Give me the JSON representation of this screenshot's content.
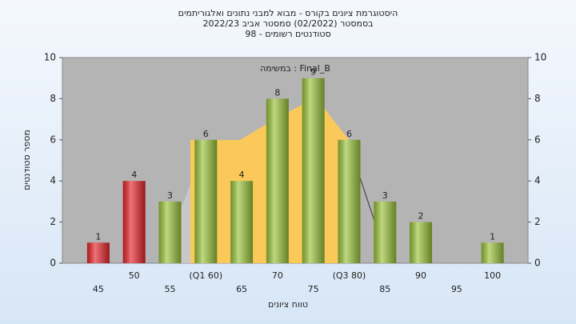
{
  "chart_data": {
    "type": "bar",
    "title": "היסטוגרמת ציונים בקורס - מבוא למבני נתונים ואלגוריתמים",
    "subtitles": [
      "בסמסטר  (02/2022)  סמסטר אביב 2022/23",
      "סטודנטים רשומים - 98"
    ],
    "annotation": "במשימה : Final_B",
    "x_label": "טווח ציונים",
    "y_label": "מספר סטודנטים",
    "categories": [
      "45",
      "50",
      "55",
      "(Q1 60)",
      "65",
      "70",
      "75",
      "(Q3 80)",
      "85",
      "90",
      "95",
      "100"
    ],
    "values": [
      1,
      4,
      3,
      6,
      4,
      8,
      9,
      6,
      3,
      2,
      null,
      1
    ],
    "colors": [
      "#e8262e",
      "#e8262e",
      "#9cc43c",
      "#9cc43c",
      "#9cc43c",
      "#9cc43c",
      "#9cc43c",
      "#9cc43c",
      "#9cc43c",
      "#9cc43c",
      "#9cc43c",
      "#9cc43c"
    ],
    "ylim": [
      0,
      10
    ],
    "yticks": [
      0,
      2,
      4,
      6,
      8,
      10
    ],
    "y2lim": [
      0,
      10
    ],
    "y2ticks": [
      0,
      2,
      4,
      6,
      8,
      10
    ],
    "grid": false
  }
}
